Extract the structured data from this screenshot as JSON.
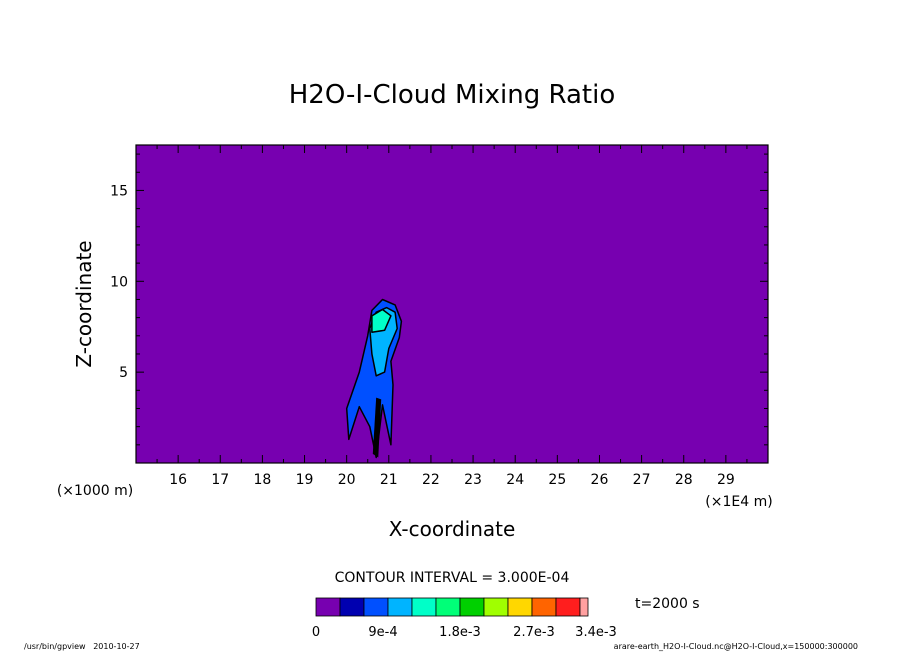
{
  "chart_data": {
    "type": "contour",
    "title": "H2O-I-Cloud Mixing Ratio",
    "xlabel": "X-coordinate",
    "ylabel": "Z-coordinate",
    "x_unit_label": "(×1E4 m)",
    "y_unit_label": "(×1000 m)",
    "xlim": [
      15.0,
      30.0
    ],
    "ylim": [
      0.0,
      17.5
    ],
    "x_ticks": [
      "16",
      "17",
      "18",
      "19",
      "20",
      "21",
      "22",
      "23",
      "24",
      "25",
      "26",
      "27",
      "28",
      "29"
    ],
    "y_ticks": [
      "5",
      "10",
      "15"
    ],
    "background_color": "#7700b0",
    "contour_interval_text": "CONTOUR INTERVAL = 3.000E-04",
    "time_text": "t=2000 s",
    "colorbar": {
      "colors": [
        "#7700b0",
        "#0000b0",
        "#0050ff",
        "#00b4ff",
        "#00ffc8",
        "#00ff78",
        "#00d000",
        "#a0ff00",
        "#ffd700",
        "#ff6400",
        "#ff1e1e",
        "#ffa0a0"
      ],
      "tick_labels": [
        "0",
        "9e-4",
        "1.8e-3",
        "2.7e-3",
        "3.4e-3"
      ]
    },
    "cloud_regions": [
      {
        "level": "3e-4",
        "color": "#0050ff",
        "outline": [
          [
            20.05,
            1.3
          ],
          [
            20.0,
            3.0
          ],
          [
            20.3,
            5.0
          ],
          [
            20.5,
            7.0
          ],
          [
            20.6,
            8.4
          ],
          [
            20.85,
            9.0
          ],
          [
            21.15,
            8.7
          ],
          [
            21.3,
            7.8
          ],
          [
            21.25,
            6.9
          ],
          [
            21.05,
            5.6
          ],
          [
            21.1,
            4.3
          ],
          [
            21.05,
            1.0
          ],
          [
            20.85,
            3.2
          ],
          [
            20.7,
            0.3
          ],
          [
            20.55,
            2.0
          ],
          [
            20.3,
            3.1
          ]
        ]
      },
      {
        "level": "6e-4",
        "color": "#00b4ff",
        "outline": [
          [
            20.7,
            4.8
          ],
          [
            20.6,
            6.0
          ],
          [
            20.55,
            7.4
          ],
          [
            20.7,
            8.3
          ],
          [
            20.95,
            8.55
          ],
          [
            21.15,
            8.3
          ],
          [
            21.2,
            7.4
          ],
          [
            21.0,
            6.3
          ],
          [
            20.9,
            5.0
          ]
        ]
      },
      {
        "level": "9e-4",
        "color": "#00ffc8",
        "outline": [
          [
            20.6,
            7.2
          ],
          [
            20.6,
            8.1
          ],
          [
            20.85,
            8.45
          ],
          [
            21.05,
            8.1
          ],
          [
            20.9,
            7.3
          ]
        ]
      }
    ],
    "footer_left": "/usr/bin/gpview   2010-10-27",
    "footer_right": "arare-earth_H2O-I-Cloud.nc@H2O-I-Cloud,x=150000:300000"
  }
}
